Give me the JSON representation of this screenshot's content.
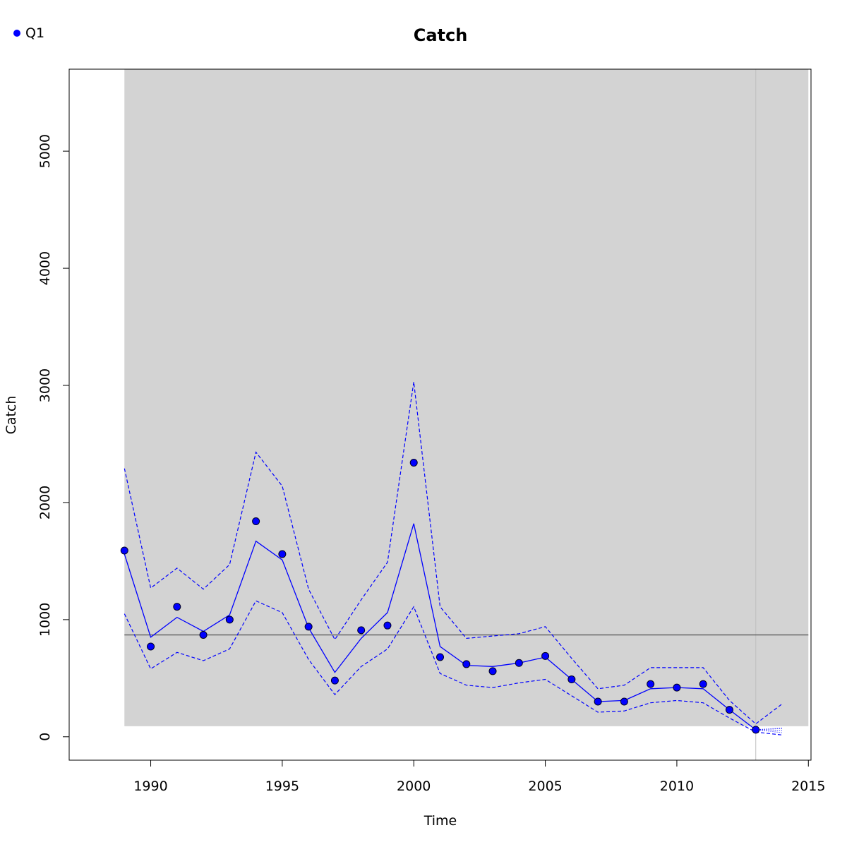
{
  "chart_data": {
    "type": "line",
    "title": "Catch",
    "xlabel": "Time",
    "ylabel": "Catch",
    "xlim": [
      1986.9,
      2015.1
    ],
    "ylim": [
      -200,
      5700
    ],
    "x_ticks": [
      1990,
      1995,
      2000,
      2005,
      2010,
      2015
    ],
    "y_ticks": [
      0,
      1000,
      2000,
      3000,
      4000,
      5000
    ],
    "grid": false,
    "legend": {
      "position": "top-left",
      "entries": [
        {
          "name": "Q1",
          "color": "#0000ff",
          "marker": "filled-circle"
        }
      ]
    },
    "shaded_region": {
      "x": [
        1989,
        2015
      ],
      "y": [
        90,
        5700
      ],
      "color": "#d3d3d3"
    },
    "reference_line": {
      "y": 870,
      "color": "#666666"
    },
    "vertical_marker": {
      "x": 2013,
      "color": "#c0c0c0"
    },
    "observed": {
      "name": "Q1",
      "color": "#0000ff",
      "x": [
        1989,
        1990,
        1991,
        1992,
        1993,
        1994,
        1995,
        1996,
        1997,
        1998,
        1999,
        2000,
        2001,
        2002,
        2003,
        2004,
        2005,
        2006,
        2007,
        2008,
        2009,
        2010,
        2011,
        2012,
        2013
      ],
      "y": [
        1590,
        770,
        1110,
        870,
        1000,
        1840,
        1560,
        940,
        480,
        910,
        950,
        2340,
        680,
        620,
        560,
        630,
        690,
        490,
        300,
        300,
        450,
        420,
        450,
        230,
        60
      ]
    },
    "fitted": {
      "color": "#0000ff",
      "x": [
        1989,
        1990,
        1991,
        1992,
        1993,
        1994,
        1995,
        1996,
        1997,
        1998,
        1999,
        2000,
        2001,
        2002,
        2003,
        2004,
        2005,
        2006,
        2007,
        2008,
        2009,
        2010,
        2011,
        2012,
        2013
      ],
      "y": [
        1560,
        850,
        1020,
        900,
        1040,
        1670,
        1510,
        930,
        550,
        840,
        1060,
        1820,
        770,
        610,
        600,
        630,
        680,
        490,
        300,
        310,
        410,
        420,
        410,
        230,
        60
      ]
    },
    "upper_ci": {
      "color": "#0000ff",
      "x": [
        1989,
        1990,
        1991,
        1992,
        1993,
        1994,
        1995,
        1996,
        1997,
        1998,
        1999,
        2000,
        2001,
        2002,
        2003,
        2004,
        2005,
        2006,
        2007,
        2008,
        2009,
        2010,
        2011,
        2012,
        2013,
        2014
      ],
      "y": [
        2290,
        1270,
        1440,
        1260,
        1470,
        2430,
        2140,
        1260,
        830,
        1170,
        1490,
        3030,
        1110,
        840,
        860,
        880,
        940,
        670,
        410,
        440,
        590,
        590,
        590,
        310,
        110,
        280
      ]
    },
    "lower_ci": {
      "color": "#0000ff",
      "x": [
        1989,
        1990,
        1991,
        1992,
        1993,
        1994,
        1995,
        1996,
        1997,
        1998,
        1999,
        2000,
        2001,
        2002,
        2003,
        2004,
        2005,
        2006,
        2007,
        2008,
        2009,
        2010,
        2011,
        2012,
        2013,
        2014
      ],
      "y": [
        1050,
        580,
        720,
        650,
        750,
        1160,
        1060,
        660,
        360,
        600,
        750,
        1110,
        540,
        440,
        420,
        460,
        490,
        350,
        210,
        220,
        290,
        310,
        290,
        160,
        40,
        15
      ]
    },
    "forecast_dotted": {
      "color": "#0000ff",
      "x": [
        2013,
        2014
      ],
      "y_series": [
        [
          60,
          70
        ],
        [
          60,
          75
        ],
        [
          60,
          55
        ],
        [
          60,
          35
        ]
      ]
    }
  }
}
